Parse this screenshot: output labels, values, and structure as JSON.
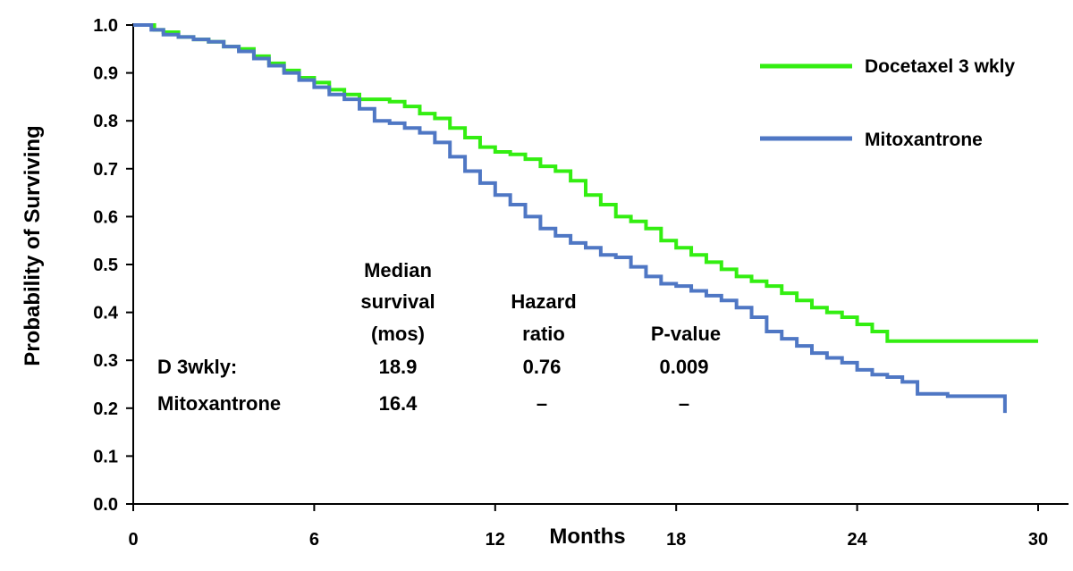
{
  "chart_data": {
    "type": "line",
    "xlabel": "Months",
    "ylabel": "Probability of Surviving",
    "xlim": [
      0,
      30
    ],
    "ylim": [
      0,
      1.0
    ],
    "xticks": [
      "0",
      "6",
      "12",
      "18",
      "24",
      "30"
    ],
    "yticks": [
      "0.0",
      "0.1",
      "0.2",
      "0.3",
      "0.4",
      "0.5",
      "0.6",
      "0.7",
      "0.8",
      "0.9",
      "1.0"
    ],
    "grid": false,
    "legend_position": "top-right",
    "series": [
      {
        "name": "Docetaxel 3 wkly",
        "color": "#33ee11",
        "step": true,
        "x": [
          0,
          0.7,
          1.0,
          1.5,
          2.0,
          2.5,
          3.0,
          3.5,
          4.0,
          4.5,
          5.0,
          5.5,
          6.0,
          6.5,
          7.0,
          7.5,
          8.0,
          8.5,
          9.0,
          9.5,
          10.0,
          10.5,
          11.0,
          11.5,
          12.0,
          12.5,
          13.0,
          13.5,
          14.0,
          14.5,
          15.0,
          15.5,
          16.0,
          16.5,
          17.0,
          17.5,
          18.0,
          18.5,
          19.0,
          19.5,
          20.0,
          20.5,
          21.0,
          21.5,
          22.0,
          22.5,
          23.0,
          23.5,
          24.0,
          24.5,
          25.0,
          30.0
        ],
        "y": [
          1.0,
          0.99,
          0.985,
          0.975,
          0.97,
          0.965,
          0.955,
          0.95,
          0.935,
          0.92,
          0.905,
          0.89,
          0.88,
          0.865,
          0.855,
          0.845,
          0.845,
          0.84,
          0.83,
          0.815,
          0.805,
          0.785,
          0.765,
          0.745,
          0.735,
          0.73,
          0.72,
          0.705,
          0.695,
          0.675,
          0.645,
          0.625,
          0.6,
          0.59,
          0.575,
          0.55,
          0.535,
          0.52,
          0.505,
          0.49,
          0.475,
          0.465,
          0.455,
          0.44,
          0.425,
          0.41,
          0.4,
          0.39,
          0.375,
          0.36,
          0.34,
          0.34
        ]
      },
      {
        "name": "Mitoxantrone",
        "color": "#4f77c4",
        "step": true,
        "x": [
          0,
          0.6,
          1.0,
          1.5,
          2.0,
          2.5,
          3.0,
          3.5,
          4.0,
          4.5,
          5.0,
          5.5,
          6.0,
          6.5,
          7.0,
          7.5,
          8.0,
          8.5,
          9.0,
          9.5,
          10.0,
          10.5,
          11.0,
          11.5,
          12.0,
          12.5,
          13.0,
          13.5,
          14.0,
          14.5,
          15.0,
          15.5,
          16.0,
          16.5,
          17.0,
          17.5,
          18.0,
          18.5,
          19.0,
          19.5,
          20.0,
          20.5,
          21.0,
          21.5,
          22.0,
          22.5,
          23.0,
          23.5,
          24.0,
          24.5,
          25.0,
          25.5,
          26.0,
          27.0,
          28.0,
          28.9
        ],
        "y": [
          1.0,
          0.99,
          0.98,
          0.975,
          0.97,
          0.965,
          0.955,
          0.945,
          0.93,
          0.915,
          0.9,
          0.885,
          0.87,
          0.855,
          0.845,
          0.825,
          0.8,
          0.795,
          0.785,
          0.775,
          0.755,
          0.725,
          0.695,
          0.67,
          0.645,
          0.625,
          0.6,
          0.575,
          0.56,
          0.545,
          0.535,
          0.52,
          0.515,
          0.495,
          0.475,
          0.46,
          0.455,
          0.445,
          0.435,
          0.425,
          0.41,
          0.39,
          0.36,
          0.345,
          0.33,
          0.315,
          0.305,
          0.295,
          0.28,
          0.27,
          0.265,
          0.255,
          0.23,
          0.225,
          0.225,
          0.19
        ]
      }
    ],
    "annotation_table": {
      "headers": [
        [
          "Median",
          "survival",
          "(mos)"
        ],
        [
          "Hazard",
          "ratio"
        ],
        [
          "P-value"
        ]
      ],
      "rows": [
        {
          "label": "D  3wkly:",
          "median": "18.9",
          "hazard": "0.76",
          "p": "0.009"
        },
        {
          "label": "Mitoxantrone",
          "median": "16.4",
          "hazard": "–",
          "p": "–"
        }
      ]
    }
  }
}
